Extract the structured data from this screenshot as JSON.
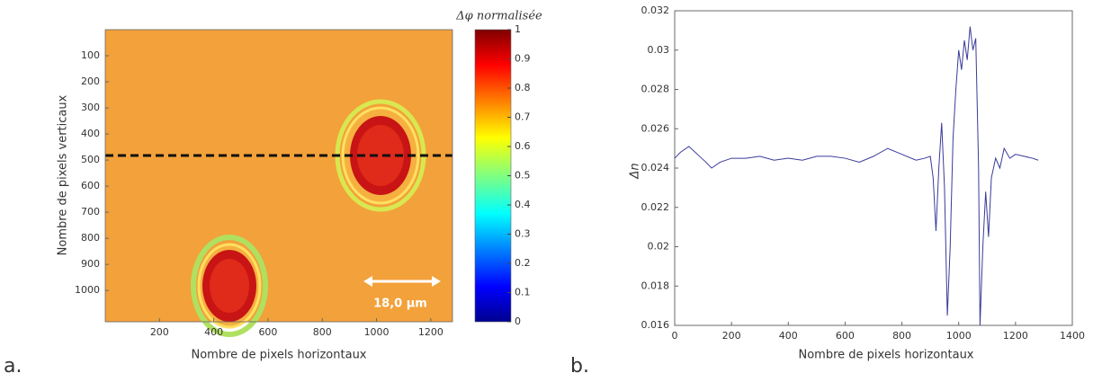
{
  "chart_data": [
    {
      "type": "image",
      "panel_label": "a.",
      "x_label": "Nombre de pixels horizontaux",
      "y_label": "Nombre de pixels verticaux",
      "xlim": [
        0,
        1280
      ],
      "ylim": [
        0,
        1120
      ],
      "y_inverted": true,
      "xticks": [
        200,
        400,
        600,
        800,
        1000,
        1200
      ],
      "yticks": [
        100,
        200,
        300,
        400,
        500,
        600,
        700,
        800,
        900,
        1000
      ],
      "colorbar_label": "Δφ normalisée",
      "colorbar_lim": [
        0,
        1
      ],
      "colorbar_ticks": [
        0,
        0.1,
        0.2,
        0.3,
        0.4,
        0.5,
        0.6,
        0.7,
        0.8,
        0.9,
        1
      ],
      "annotation": "18,0 µm"
    },
    {
      "type": "line",
      "panel_label": "b.",
      "x_label": "Nombre de pixels horizontaux",
      "y_label": "Δn",
      "color": "#3a3a9a",
      "xlim": [
        0,
        1400
      ],
      "ylim": [
        0.016,
        0.032
      ],
      "xticks": [
        0,
        200,
        400,
        600,
        800,
        1000,
        1200,
        1400
      ],
      "yticks": [
        0.016,
        0.018,
        0.02,
        0.022,
        0.024,
        0.026,
        0.028,
        0.03,
        0.032
      ],
      "x": [
        0,
        20,
        50,
        80,
        110,
        130,
        160,
        200,
        250,
        300,
        350,
        400,
        450,
        500,
        550,
        600,
        650,
        700,
        750,
        800,
        850,
        880,
        900,
        910,
        920,
        930,
        940,
        950,
        960,
        970,
        980,
        990,
        1000,
        1010,
        1020,
        1030,
        1040,
        1050,
        1060,
        1070,
        1075,
        1085,
        1095,
        1105,
        1115,
        1130,
        1145,
        1160,
        1180,
        1200,
        1230,
        1260,
        1280
      ],
      "values": [
        0.0245,
        0.0248,
        0.0251,
        0.0247,
        0.0243,
        0.024,
        0.0243,
        0.0245,
        0.0245,
        0.0246,
        0.0244,
        0.0245,
        0.0244,
        0.0246,
        0.0246,
        0.0245,
        0.0243,
        0.0246,
        0.025,
        0.0247,
        0.0244,
        0.0245,
        0.0246,
        0.0235,
        0.0208,
        0.024,
        0.0263,
        0.023,
        0.0165,
        0.02,
        0.0255,
        0.028,
        0.03,
        0.029,
        0.0305,
        0.0295,
        0.0312,
        0.03,
        0.0306,
        0.024,
        0.016,
        0.02,
        0.0228,
        0.0205,
        0.0235,
        0.0245,
        0.024,
        0.025,
        0.0245,
        0.0247,
        0.0246,
        0.0245,
        0.0244
      ]
    }
  ]
}
